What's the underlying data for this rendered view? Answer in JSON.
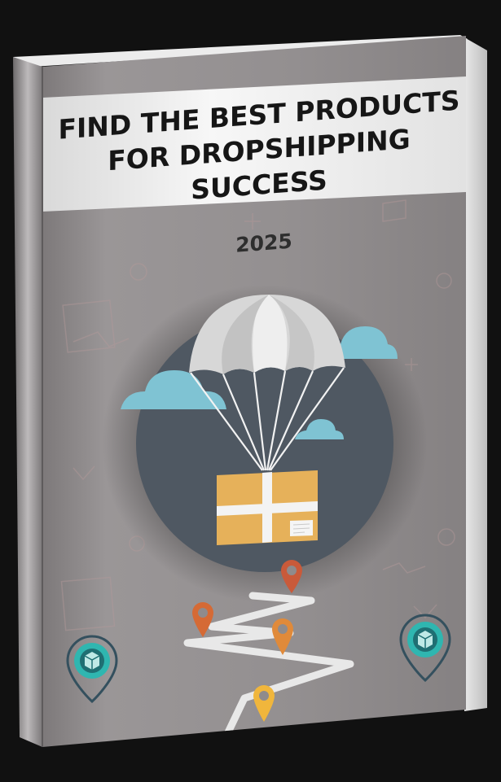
{
  "book": {
    "title_line1": "FIND THE BEST PRODUCTS",
    "title_line2": "FOR DROPSHIPPING",
    "title_line3": "SUCCESS",
    "year": "2025"
  },
  "colors": {
    "background": "#111111",
    "cover": "#8f8b8c",
    "title_band": "#f2f2f2",
    "circle": "#4f5862",
    "box": "#e6b15a",
    "cloud": "#7fc3d3",
    "pin_red": "#c95a3a",
    "pin_orange": "#e08a3a",
    "pin_yellow": "#f0b63c",
    "badge": "#2fb6b0"
  },
  "illustration": {
    "parachute": "parachute-icon",
    "package": "package-icon",
    "route": "winding-road",
    "pins": [
      "location-pin-icon",
      "location-pin-icon",
      "location-pin-icon",
      "location-pin-icon"
    ],
    "badges": [
      "package-badge-icon",
      "package-badge-icon"
    ]
  }
}
